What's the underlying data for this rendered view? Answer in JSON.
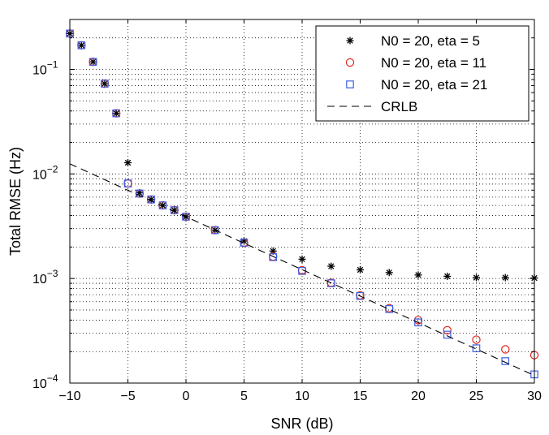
{
  "chart_data": {
    "type": "scatter",
    "xlabel": "SNR (dB)",
    "ylabel": "Total RMSE (Hz)",
    "xlim": [
      -10,
      30
    ],
    "ylim": [
      0.0001,
      0.3
    ],
    "yscale": "log",
    "grid": "dotted, major and minor",
    "legend_position": "top-right",
    "x_ticks": [
      -10,
      -5,
      0,
      5,
      10,
      15,
      20,
      25,
      30
    ],
    "x_tick_labels": [
      "−10",
      "−5",
      "0",
      "5",
      "10",
      "15",
      "20",
      "25",
      "30"
    ],
    "y_ticks": [
      {
        "value": 0.1,
        "base": "10",
        "exp": "−1"
      },
      {
        "value": 0.01,
        "base": "10",
        "exp": "−2"
      },
      {
        "value": 0.001,
        "base": "10",
        "exp": "−3"
      },
      {
        "value": 0.0001,
        "base": "10",
        "exp": "−4"
      }
    ],
    "series": [
      {
        "name": "N0 = 20, eta = 5",
        "marker": "star",
        "color": "#000000",
        "x": [
          -10,
          -9,
          -8,
          -7,
          -6,
          -5,
          -4,
          -3,
          -2,
          -1,
          0,
          2.5,
          5,
          7.5,
          10,
          12.5,
          15,
          17.5,
          20,
          22.5,
          25,
          27.5,
          30
        ],
        "y": [
          0.22,
          0.17,
          0.118,
          0.073,
          0.038,
          0.0128,
          0.0066,
          0.0057,
          0.005,
          0.0045,
          0.0039,
          0.0029,
          0.00228,
          0.00183,
          0.00153,
          0.00131,
          0.00121,
          0.00114,
          0.00108,
          0.00105,
          0.00102,
          0.00102,
          0.00101
        ]
      },
      {
        "name": "N0 = 20, eta = 11",
        "marker": "circle",
        "color": "#e3231c",
        "x": [
          -10,
          -9,
          -8,
          -7,
          -6,
          -5,
          -4,
          -3,
          -2,
          -1,
          0,
          2.5,
          5,
          7.5,
          10,
          12.5,
          15,
          17.5,
          20,
          22.5,
          25,
          27.5,
          30
        ],
        "y": [
          0.22,
          0.17,
          0.118,
          0.073,
          0.038,
          0.0081,
          0.0065,
          0.0057,
          0.005,
          0.0045,
          0.0039,
          0.0029,
          0.0022,
          0.00162,
          0.0012,
          0.00091,
          0.00069,
          0.00052,
          0.0004,
          0.00032,
          0.00026,
          0.00021,
          0.000185
        ]
      },
      {
        "name": "N0 = 20, eta = 21",
        "marker": "square",
        "color": "#3b5fe6",
        "x": [
          -10,
          -9,
          -8,
          -7,
          -6,
          -5,
          -4,
          -3,
          -2,
          -1,
          0,
          2.5,
          5,
          7.5,
          10,
          12.5,
          15,
          17.5,
          20,
          22.5,
          25,
          27.5,
          30
        ],
        "y": [
          0.22,
          0.17,
          0.118,
          0.073,
          0.038,
          0.0081,
          0.0065,
          0.0057,
          0.005,
          0.0045,
          0.0039,
          0.0029,
          0.0022,
          0.0016,
          0.00118,
          0.0009,
          0.00068,
          0.00051,
          0.00038,
          0.00029,
          0.000215,
          0.000162,
          0.000121
        ]
      },
      {
        "name": "CRLB",
        "marker": "dashed-line",
        "color": "#000000",
        "x": [
          -10,
          30
        ],
        "y": [
          0.0125,
          0.000118
        ]
      }
    ]
  }
}
